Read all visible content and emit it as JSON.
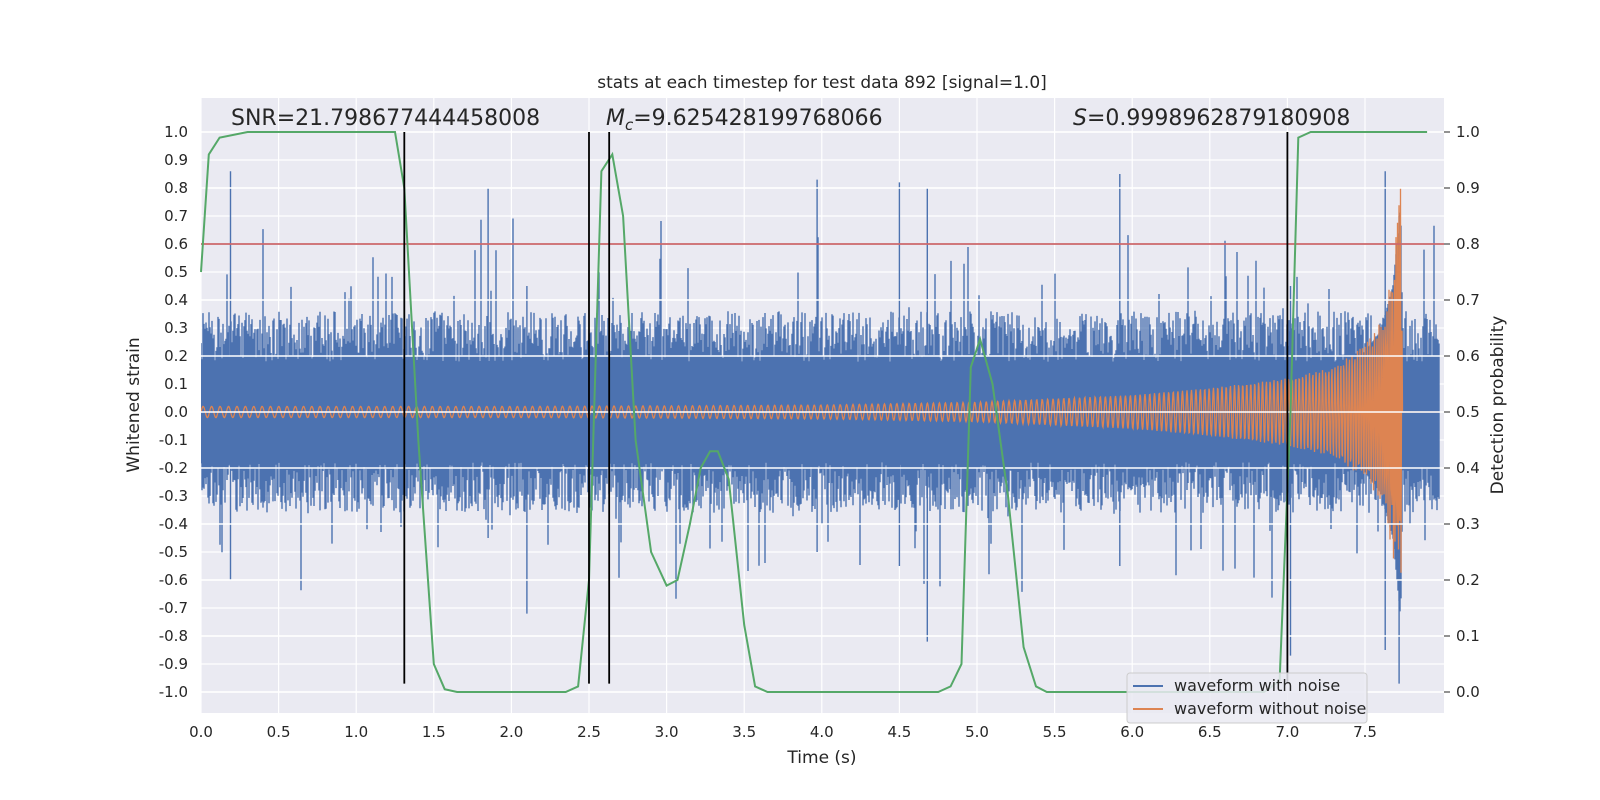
{
  "chart_data": {
    "type": "line",
    "title": "stats at each timestep for test data 892 [signal=1.0]",
    "xlabel": "Time (s)",
    "ylabel": "Whitened strain",
    "y2label": "Detection probability",
    "xlim": [
      0.0,
      8.0
    ],
    "ylim": [
      -1.1,
      1.1
    ],
    "y2lim": [
      -0.05,
      1.05
    ],
    "xticks": [
      "0.0",
      "0.5",
      "1.0",
      "1.5",
      "2.0",
      "2.5",
      "3.0",
      "3.5",
      "4.0",
      "4.5",
      "5.0",
      "5.5",
      "6.0",
      "6.5",
      "7.0",
      "7.5"
    ],
    "yticks": [
      "1.0",
      "0.9",
      "0.8",
      "0.7",
      "0.6",
      "0.5",
      "0.4",
      "0.3",
      "0.2",
      "0.1",
      "0.0",
      "-0.1",
      "-0.2",
      "-0.3",
      "-0.4",
      "-0.5",
      "-0.6",
      "-0.7",
      "-0.8",
      "-0.9",
      "-1.0"
    ],
    "y2ticks": [
      "1.0",
      "0.9",
      "0.8",
      "0.7",
      "0.6",
      "0.5",
      "0.4",
      "0.3",
      "0.2",
      "0.1",
      "0.0"
    ],
    "grid": true,
    "legend_position": "lower-right",
    "annotations": {
      "snr": "SNR=21.798677444458008",
      "mc_symbol": "M",
      "mc_sub": "c",
      "mc_value": "=9.625428199768066",
      "s_symbol": "S",
      "s_value": "=0.9998962879180908"
    },
    "threshold": {
      "value": 0.8,
      "color": "#c44e52"
    },
    "vlines": [
      1.31,
      2.5,
      2.63,
      7.0
    ],
    "vline_range": [
      -0.97,
      1.0
    ],
    "series": [
      {
        "name": "waveform with noise",
        "color": "#4c72b0",
        "description_values": "dense noise, mostly within +/-0.45, spikes up to 0.86 at t=0.2 and t=7.65, down to -0.95 at t=7.7"
      },
      {
        "name": "waveform without noise",
        "color": "#dd8452",
        "envelope": {
          "t": [
            0.0,
            1.0,
            2.0,
            3.0,
            4.0,
            5.0,
            6.0,
            6.5,
            7.0,
            7.3,
            7.5,
            7.6,
            7.68,
            7.73,
            7.75
          ],
          "amp": [
            0.02,
            0.02,
            0.02,
            0.022,
            0.025,
            0.035,
            0.06,
            0.085,
            0.12,
            0.16,
            0.24,
            0.32,
            0.5,
            0.82,
            0.0
          ]
        },
        "merger_time": 7.74
      },
      {
        "name": "detection probability",
        "axis": "right",
        "color": "#55a868",
        "x": [
          0.0,
          0.05,
          0.12,
          0.3,
          0.6,
          0.9,
          1.15,
          1.25,
          1.31,
          1.4,
          1.5,
          1.57,
          1.65,
          1.8,
          2.0,
          2.2,
          2.35,
          2.43,
          2.5,
          2.58,
          2.65,
          2.72,
          2.8,
          2.9,
          3.0,
          3.07,
          3.15,
          3.22,
          3.28,
          3.33,
          3.4,
          3.5,
          3.57,
          3.65,
          3.8,
          4.0,
          4.2,
          4.5,
          4.65,
          4.75,
          4.83,
          4.9,
          4.96,
          5.02,
          5.1,
          5.2,
          5.3,
          5.38,
          5.45,
          5.6,
          5.8,
          6.0,
          6.3,
          6.6,
          6.85,
          6.95,
          7.02,
          7.07,
          7.15,
          7.3,
          7.5,
          7.7,
          7.9
        ],
        "y": [
          0.75,
          0.96,
          0.99,
          1.0,
          1.0,
          1.0,
          1.0,
          1.0,
          0.9,
          0.45,
          0.05,
          0.005,
          0.0,
          0.0,
          0.0,
          0.0,
          0.0,
          0.01,
          0.2,
          0.93,
          0.96,
          0.85,
          0.45,
          0.25,
          0.19,
          0.2,
          0.3,
          0.4,
          0.43,
          0.43,
          0.38,
          0.12,
          0.01,
          0.0,
          0.0,
          0.0,
          0.0,
          0.0,
          0.0,
          0.0,
          0.01,
          0.05,
          0.58,
          0.63,
          0.55,
          0.35,
          0.08,
          0.01,
          0.0,
          0.0,
          0.0,
          0.0,
          0.0,
          0.0,
          0.0,
          0.02,
          0.5,
          0.99,
          1.0,
          1.0,
          1.0,
          1.0,
          1.0
        ]
      }
    ]
  }
}
